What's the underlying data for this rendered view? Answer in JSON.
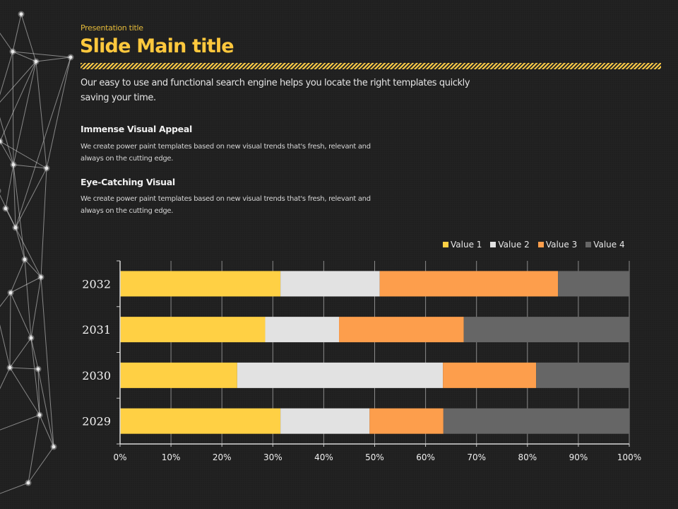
{
  "header": {
    "presentation_title": "Presentation title",
    "main_title": "Slide Main title"
  },
  "intro_text": "Our easy to use and functional search engine helps you locate the right templates quickly saving your time.",
  "sections": [
    {
      "heading": "Immense Visual Appeal",
      "body": "We create power paint templates based on new visual trends that's fresh, relevant and always on the cutting edge."
    },
    {
      "heading": "Eye-Catching Visual",
      "body": "We create power paint templates based on new visual trends that's fresh, relevant and always on the cutting edge."
    }
  ],
  "colors": {
    "accent": "#ffc83d",
    "background": "#1f1f1f"
  },
  "chart_data": {
    "type": "bar",
    "orientation": "horizontal",
    "stacking": "percent",
    "title": "",
    "xlabel": "",
    "ylabel": "",
    "categories": [
      "2029",
      "2030",
      "2031",
      "2032"
    ],
    "series": [
      {
        "name": "Value  1",
        "color": "#ffd044",
        "values": [
          31.5,
          23.0,
          28.5,
          31.5
        ]
      },
      {
        "name": "Value  2",
        "color": "#e2e2e2",
        "values": [
          17.5,
          40.4,
          14.5,
          19.5
        ]
      },
      {
        "name": "Value  3",
        "color": "#fd9e4c",
        "values": [
          14.5,
          18.3,
          24.5,
          35.0
        ]
      },
      {
        "name": "Value  4",
        "color": "#666666",
        "values": [
          36.5,
          18.3,
          32.5,
          14.0
        ]
      }
    ],
    "x_ticks": [
      "0%",
      "10%",
      "20%",
      "30%",
      "40%",
      "50%",
      "60%",
      "70%",
      "80%",
      "90%",
      "100%"
    ],
    "xlim": [
      0,
      100
    ],
    "grid": true,
    "legend_position": "top-right"
  }
}
